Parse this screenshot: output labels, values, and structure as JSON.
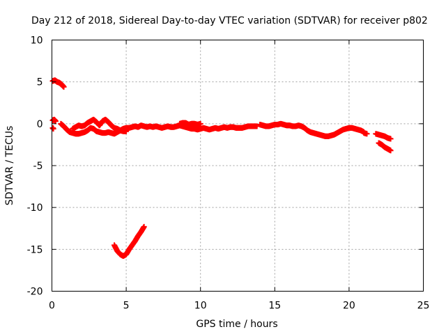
{
  "chart_data": {
    "type": "scatter",
    "title": "Day 212 of 2018, Sidereal Day-to-day VTEC variation (SDTVAR) for receiver p802",
    "xlabel": "GPS time / hours",
    "ylabel": "SDTVAR / TECUs",
    "xlim": [
      0,
      25
    ],
    "ylim": [
      -20,
      10
    ],
    "xticks": [
      0,
      5,
      10,
      15,
      20,
      25
    ],
    "xtick_labels": [
      "0",
      "5",
      "10",
      "15",
      "20",
      "25"
    ],
    "yticks": [
      -20,
      -15,
      -10,
      -5,
      0,
      5,
      10
    ],
    "ytick_labels": [
      "-20",
      "-15",
      "-10",
      "-5",
      "0",
      "5",
      "10"
    ],
    "grid": true,
    "marker": "plus",
    "series": [
      {
        "name": "SDTVAR",
        "color": "#ff0000",
        "segments": [
          {
            "x": [
              0.05,
              0.2,
              0.35,
              0.5,
              0.65,
              0.8
            ],
            "y": [
              5.1,
              5.2,
              5.0,
              4.9,
              4.7,
              4.4
            ]
          },
          {
            "x": [
              0.05,
              0.15,
              0.25
            ],
            "y": [
              0.4,
              0.5,
              0.3
            ]
          },
          {
            "x": [
              0.05,
              0.1
            ],
            "y": [
              -0.5,
              -0.6
            ]
          },
          {
            "x": [
              0.6,
              0.8,
              1.0,
              1.2,
              1.4,
              1.6,
              1.8,
              2.0,
              2.2,
              2.4,
              2.6,
              2.8,
              3.0,
              3.2,
              3.4,
              3.6,
              3.8,
              4.0,
              4.2,
              4.4,
              4.6,
              4.8,
              5.0,
              5.2,
              5.4,
              5.6,
              5.8,
              6.0,
              6.2,
              6.4,
              6.6,
              6.8,
              7.0,
              7.2,
              7.4,
              7.6,
              7.8,
              8.0,
              8.2,
              8.4,
              8.6,
              8.8,
              9.0,
              9.2,
              9.4,
              9.6,
              9.8,
              10.0,
              10.2,
              10.4,
              10.6,
              10.8,
              11.0,
              11.2,
              11.4,
              11.6,
              11.8,
              12.0,
              12.2,
              12.4,
              12.6,
              12.8,
              13.0,
              13.2,
              13.4,
              13.6,
              13.8
            ],
            "y": [
              0.0,
              -0.3,
              -0.7,
              -1.0,
              -1.1,
              -1.2,
              -1.2,
              -1.1,
              -1.0,
              -0.8,
              -0.5,
              -0.6,
              -0.9,
              -1.0,
              -1.1,
              -1.1,
              -1.0,
              -1.1,
              -1.2,
              -1.0,
              -0.8,
              -0.6,
              -0.5,
              -0.5,
              -0.4,
              -0.3,
              -0.4,
              -0.2,
              -0.3,
              -0.4,
              -0.3,
              -0.4,
              -0.3,
              -0.4,
              -0.5,
              -0.4,
              -0.3,
              -0.4,
              -0.4,
              -0.3,
              -0.2,
              -0.3,
              -0.4,
              -0.5,
              -0.6,
              -0.6,
              -0.7,
              -0.6,
              -0.5,
              -0.6,
              -0.7,
              -0.6,
              -0.5,
              -0.6,
              -0.5,
              -0.4,
              -0.5,
              -0.4,
              -0.4,
              -0.5,
              -0.5,
              -0.5,
              -0.4,
              -0.3,
              -0.3,
              -0.3,
              -0.3
            ]
          },
          {
            "x": [
              1.4,
              1.6,
              1.8,
              2.0,
              2.2,
              2.4,
              2.6,
              2.8,
              3.0,
              3.2,
              3.4,
              3.6,
              3.8,
              4.0,
              4.2,
              4.4,
              4.6,
              4.8,
              5.0
            ],
            "y": [
              -0.6,
              -0.4,
              -0.2,
              -0.3,
              -0.2,
              0.1,
              0.3,
              0.5,
              0.2,
              -0.2,
              0.3,
              0.5,
              0.2,
              -0.2,
              -0.5,
              -0.6,
              -0.8,
              -0.9,
              -0.9
            ]
          },
          {
            "x": [
              8.6,
              8.8,
              9.0,
              9.2,
              9.4,
              9.6,
              9.8,
              10.0
            ],
            "y": [
              0.0,
              0.1,
              0.1,
              -0.1,
              0.0,
              0.0,
              -0.1,
              0.0
            ]
          },
          {
            "x": [
              14.0,
              14.2,
              14.4,
              14.6,
              14.8,
              15.0,
              15.2,
              15.4,
              15.6,
              15.8,
              16.0,
              16.2,
              16.4,
              16.6,
              16.8,
              17.0,
              17.2,
              17.4,
              17.6,
              17.8,
              18.0,
              18.2,
              18.4,
              18.6,
              18.8,
              19.0,
              19.2,
              19.4,
              19.6,
              19.8,
              20.0,
              20.2,
              20.4,
              20.6,
              20.8,
              21.0
            ],
            "y": [
              -0.1,
              -0.2,
              -0.3,
              -0.3,
              -0.2,
              -0.1,
              -0.1,
              0.0,
              -0.1,
              -0.2,
              -0.2,
              -0.3,
              -0.3,
              -0.2,
              -0.3,
              -0.5,
              -0.8,
              -1.0,
              -1.1,
              -1.2,
              -1.3,
              -1.4,
              -1.5,
              -1.5,
              -1.4,
              -1.3,
              -1.1,
              -0.9,
              -0.7,
              -0.6,
              -0.5,
              -0.5,
              -0.6,
              -0.7,
              -0.8,
              -1.0
            ]
          },
          {
            "x": [
              21.8,
              22.0,
              22.2,
              22.4,
              22.6,
              22.8
            ],
            "y": [
              -1.2,
              -1.3,
              -1.4,
              -1.5,
              -1.7,
              -1.8
            ]
          },
          {
            "x": [
              21.0,
              21.2
            ],
            "y": [
              -1.1,
              -1.2
            ]
          },
          {
            "x": [
              22.0,
              22.2,
              22.4,
              22.6,
              22.8
            ],
            "y": [
              -2.3,
              -2.5,
              -2.8,
              -3.0,
              -3.2
            ]
          },
          {
            "x": [
              4.2,
              4.4,
              4.6,
              4.8,
              5.0,
              5.2,
              5.4,
              5.6,
              5.8,
              6.0,
              6.2
            ],
            "y": [
              -14.5,
              -15.2,
              -15.6,
              -15.8,
              -15.6,
              -15.0,
              -14.5,
              -14.0,
              -13.4,
              -12.9,
              -12.3
            ]
          }
        ]
      }
    ]
  }
}
